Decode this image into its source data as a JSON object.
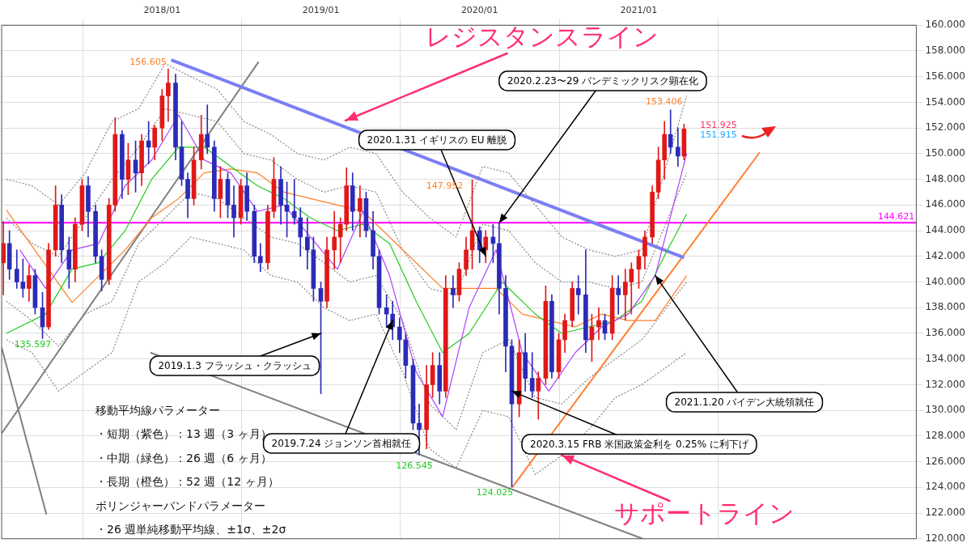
{
  "chart_data": {
    "type": "candlestick",
    "x": [
      "2017-01-01",
      "2017-01-15",
      "2017-02-01",
      "2017-02-15",
      "2017-03-01",
      "2017-03-15",
      "2017-04-01",
      "2017-04-15",
      "2017-05-01",
      "2017-05-15",
      "2017-06-01",
      "2017-06-15",
      "2017-07-01",
      "2017-07-15",
      "2017-08-01",
      "2017-08-15",
      "2017-09-01",
      "2017-09-15",
      "2017-10-01",
      "2017-10-15",
      "2017-11-01",
      "2017-11-15",
      "2017-12-01",
      "2017-12-15",
      "2018-01-01",
      "2018-01-15",
      "2018-02-01",
      "2018-02-15",
      "2018-03-01",
      "2018-03-15",
      "2018-04-01",
      "2018-04-15",
      "2018-05-01",
      "2018-05-15",
      "2018-06-01",
      "2018-06-15",
      "2018-07-01",
      "2018-07-15",
      "2018-08-01",
      "2018-08-15",
      "2018-09-01",
      "2018-09-15",
      "2018-10-01",
      "2018-10-15",
      "2018-11-01",
      "2018-11-15",
      "2018-12-01",
      "2018-12-15",
      "2019-01-01",
      "2019-01-15",
      "2019-02-01",
      "2019-02-15",
      "2019-03-01",
      "2019-03-15",
      "2019-04-01",
      "2019-04-15",
      "2019-05-01",
      "2019-05-15",
      "2019-06-01",
      "2019-06-15",
      "2019-07-01",
      "2019-07-15",
      "2019-08-01",
      "2019-08-15",
      "2019-09-01",
      "2019-09-15",
      "2019-10-01",
      "2019-10-15",
      "2019-11-01",
      "2019-11-15",
      "2019-12-01",
      "2019-12-15",
      "2020-01-01",
      "2020-01-15",
      "2020-02-01",
      "2020-02-15",
      "2020-03-01",
      "2020-03-15",
      "2020-04-01",
      "2020-04-15",
      "2020-05-01",
      "2020-05-15",
      "2020-06-01",
      "2020-06-15",
      "2020-07-01",
      "2020-07-15",
      "2020-08-01",
      "2020-08-15",
      "2020-09-01",
      "2020-09-15",
      "2020-10-01",
      "2020-10-15",
      "2020-11-01",
      "2020-11-15",
      "2020-12-01",
      "2020-12-15",
      "2021-01-01",
      "2021-01-15",
      "2021-02-01",
      "2021-02-15",
      "2021-03-01",
      "2021-03-15",
      "2021-04-01",
      "2021-04-15"
    ],
    "ohlc": [
      [
        141.5,
        144.7,
        139.0,
        143.0
      ],
      [
        143.0,
        144.0,
        140.2,
        141.0
      ],
      [
        141.0,
        142.5,
        139.5,
        140.0
      ],
      [
        140.0,
        141.8,
        138.8,
        139.5
      ],
      [
        139.5,
        141.3,
        138.5,
        140.5
      ],
      [
        140.5,
        141.0,
        137.5,
        138.0
      ],
      [
        138.0,
        139.2,
        135.597,
        136.5
      ],
      [
        136.5,
        143.0,
        136.3,
        142.5
      ],
      [
        142.5,
        147.5,
        142.0,
        146.0
      ],
      [
        146.0,
        146.8,
        141.5,
        142.5
      ],
      [
        142.5,
        143.5,
        139.5,
        141.0
      ],
      [
        141.0,
        145.0,
        140.0,
        144.5
      ],
      [
        144.5,
        148.0,
        144.0,
        147.5
      ],
      [
        147.5,
        148.2,
        143.5,
        145.5
      ],
      [
        145.5,
        146.0,
        141.5,
        142.0
      ],
      [
        142.0,
        142.5,
        139.3,
        140.2
      ],
      [
        140.2,
        146.5,
        139.8,
        146.0
      ],
      [
        146.0,
        152.8,
        145.5,
        151.5
      ],
      [
        151.5,
        151.8,
        146.5,
        148.0
      ],
      [
        148.0,
        150.8,
        146.8,
        149.5
      ],
      [
        149.5,
        151.0,
        147.0,
        148.5
      ],
      [
        148.5,
        151.5,
        147.5,
        151.0
      ],
      [
        151.0,
        152.5,
        149.2,
        150.5
      ],
      [
        150.5,
        152.2,
        149.5,
        152.0
      ],
      [
        152.0,
        155.0,
        151.0,
        154.5
      ],
      [
        154.5,
        156.605,
        152.5,
        155.5
      ],
      [
        155.5,
        156.2,
        149.5,
        150.5
      ],
      [
        150.5,
        152.5,
        147.5,
        148.0
      ],
      [
        148.0,
        148.5,
        145.0,
        146.5
      ],
      [
        146.5,
        150.5,
        146.0,
        149.5
      ],
      [
        149.5,
        153.0,
        148.8,
        151.5
      ],
      [
        151.5,
        153.8,
        150.0,
        150.5
      ],
      [
        150.5,
        151.0,
        145.5,
        146.5
      ],
      [
        146.5,
        149.0,
        145.0,
        148.0
      ],
      [
        148.0,
        148.5,
        145.0,
        146.0
      ],
      [
        146.0,
        147.5,
        143.5,
        145.0
      ],
      [
        145.0,
        148.0,
        144.5,
        147.5
      ],
      [
        147.5,
        148.5,
        144.8,
        145.5
      ],
      [
        145.5,
        146.0,
        141.5,
        142.0
      ],
      [
        142.0,
        143.0,
        140.8,
        141.5
      ],
      [
        141.5,
        146.0,
        141.0,
        145.5
      ],
      [
        145.5,
        149.7,
        145.0,
        148.0
      ],
      [
        148.0,
        149.0,
        144.5,
        146.0
      ],
      [
        146.0,
        147.8,
        143.5,
        145.5
      ],
      [
        145.5,
        148.0,
        144.5,
        145.0
      ],
      [
        145.0,
        145.8,
        142.0,
        143.5
      ],
      [
        143.5,
        145.0,
        141.0,
        142.5
      ],
      [
        142.5,
        143.5,
        138.5,
        139.5
      ],
      [
        139.5,
        140.0,
        131.3,
        138.5
      ],
      [
        138.5,
        143.5,
        138.0,
        142.5
      ],
      [
        142.5,
        145.5,
        141.0,
        143.5
      ],
      [
        143.5,
        145.0,
        141.5,
        144.5
      ],
      [
        144.5,
        148.9,
        144.0,
        147.5
      ],
      [
        147.5,
        148.5,
        144.0,
        145.5
      ],
      [
        145.5,
        147.5,
        143.5,
        146.5
      ],
      [
        146.5,
        147.0,
        143.5,
        144.0
      ],
      [
        144.0,
        145.5,
        141.0,
        142.0
      ],
      [
        142.0,
        142.5,
        137.5,
        138.0
      ],
      [
        138.0,
        139.0,
        136.5,
        137.5
      ],
      [
        137.5,
        138.5,
        135.5,
        136.5
      ],
      [
        136.5,
        137.2,
        134.5,
        135.5
      ],
      [
        135.5,
        136.0,
        132.5,
        133.5
      ],
      [
        133.5,
        134.0,
        128.5,
        129.0
      ],
      [
        129.0,
        130.5,
        126.545,
        128.5
      ],
      [
        128.5,
        133.5,
        127.0,
        132.0
      ],
      [
        132.0,
        134.5,
        131.0,
        133.5
      ],
      [
        133.5,
        134.5,
        130.5,
        131.5
      ],
      [
        131.5,
        140.5,
        131.0,
        139.5
      ],
      [
        139.5,
        140.5,
        138.0,
        139.0
      ],
      [
        139.0,
        141.5,
        138.5,
        141.0
      ],
      [
        141.0,
        143.5,
        140.5,
        142.5
      ],
      [
        142.5,
        147.952,
        141.0,
        144.0
      ],
      [
        144.0,
        144.3,
        141.5,
        142.5
      ],
      [
        142.5,
        144.0,
        141.5,
        143.5
      ],
      [
        143.5,
        144.5,
        141.5,
        143.0
      ],
      [
        143.0,
        144.6,
        137.5,
        139.5
      ],
      [
        139.5,
        140.5,
        133.0,
        135.0
      ],
      [
        135.0,
        135.5,
        124.025,
        130.5
      ],
      [
        130.5,
        135.5,
        129.5,
        134.5
      ],
      [
        134.5,
        136.0,
        131.5,
        132.5
      ],
      [
        132.5,
        134.5,
        131.0,
        131.5
      ],
      [
        131.5,
        133.0,
        129.3,
        132.5
      ],
      [
        132.5,
        139.7,
        132.0,
        138.5
      ],
      [
        138.5,
        139.0,
        132.5,
        133.0
      ],
      [
        133.0,
        136.0,
        132.5,
        135.5
      ],
      [
        135.5,
        137.5,
        134.5,
        137.0
      ],
      [
        137.0,
        140.0,
        136.5,
        139.5
      ],
      [
        139.5,
        140.5,
        137.5,
        139.0
      ],
      [
        139.0,
        142.5,
        134.5,
        135.5
      ],
      [
        135.5,
        137.5,
        133.8,
        136.5
      ],
      [
        136.5,
        138.0,
        135.5,
        137.0
      ],
      [
        137.0,
        137.5,
        135.5,
        136.0
      ],
      [
        136.0,
        140.5,
        135.5,
        139.5
      ],
      [
        139.5,
        140.5,
        137.5,
        139.0
      ],
      [
        139.0,
        141.0,
        137.0,
        140.0
      ],
      [
        140.0,
        141.5,
        137.5,
        141.0
      ],
      [
        141.0,
        142.5,
        139.5,
        142.0
      ],
      [
        142.0,
        144.0,
        141.0,
        143.5
      ],
      [
        143.5,
        147.5,
        143.0,
        147.0
      ],
      [
        147.0,
        150.5,
        146.5,
        149.5
      ],
      [
        149.5,
        152.5,
        148.0,
        151.5
      ],
      [
        151.5,
        153.406,
        150.0,
        150.5
      ],
      [
        150.5,
        152.0,
        149.0,
        149.8
      ],
      [
        149.8,
        152.3,
        149.5,
        151.925
      ]
    ],
    "colors": [
      "#e01818",
      "#2b2bb8",
      "#2b2bb8",
      "#2b2bb8",
      "#e01818",
      "#2b2bb8",
      "#2b2bb8",
      "#e01818",
      "#e01818",
      "#2b2bb8",
      "#2b2bb8",
      "#e01818",
      "#e01818",
      "#2b2bb8",
      "#2b2bb8",
      "#2b2bb8",
      "#e01818",
      "#e01818",
      "#2b2bb8",
      "#e01818",
      "#2b2bb8",
      "#e01818",
      "#2b2bb8",
      "#e01818",
      "#e01818",
      "#e01818",
      "#2b2bb8",
      "#2b2bb8",
      "#2b2bb8",
      "#e01818",
      "#e01818",
      "#2b2bb8",
      "#2b2bb8",
      "#e01818",
      "#2b2bb8",
      "#2b2bb8",
      "#e01818",
      "#2b2bb8",
      "#2b2bb8",
      "#2b2bb8",
      "#e01818",
      "#e01818",
      "#2b2bb8",
      "#2b2bb8",
      "#2b2bb8",
      "#2b2bb8",
      "#2b2bb8",
      "#2b2bb8",
      "#2b2bb8",
      "#e01818",
      "#e01818",
      "#e01818",
      "#e01818",
      "#2b2bb8",
      "#e01818",
      "#2b2bb8",
      "#2b2bb8",
      "#2b2bb8",
      "#2b2bb8",
      "#2b2bb8",
      "#2b2bb8",
      "#2b2bb8",
      "#2b2bb8",
      "#2b2bb8",
      "#e01818",
      "#e01818",
      "#2b2bb8",
      "#e01818",
      "#2b2bb8",
      "#e01818",
      "#e01818",
      "#e01818",
      "#2b2bb8",
      "#e01818",
      "#2b2bb8",
      "#2b2bb8",
      "#2b2bb8",
      "#2b2bb8",
      "#e01818",
      "#2b2bb8",
      "#2b2bb8",
      "#e01818",
      "#e01818",
      "#2b2bb8",
      "#e01818",
      "#e01818",
      "#e01818",
      "#2b2bb8",
      "#2b2bb8",
      "#e01818",
      "#e01818",
      "#2b2bb8",
      "#e01818",
      "#2b2bb8",
      "#e01818",
      "#e01818",
      "#e01818",
      "#e01818",
      "#e01818",
      "#e01818",
      "#e01818",
      "#2b2bb8",
      "#2b2bb8",
      "#e01818"
    ],
    "series": [
      {
        "type": "line",
        "color": "#b040ff",
        "line_style": "solid",
        "x": [
          "2017-02-08",
          "2017-04-08",
          "2017-06-08",
          "2017-08-08",
          "2017-10-08",
          "2017-12-08",
          "2018-02-08",
          "2018-04-08",
          "2018-06-08",
          "2018-08-08",
          "2018-10-08",
          "2018-12-08",
          "2019-02-08",
          "2019-04-08",
          "2019-06-08",
          "2019-08-08",
          "2019-10-08",
          "2019-12-08",
          "2020-02-08",
          "2020-04-08",
          "2020-06-08",
          "2020-08-08",
          "2020-10-08",
          "2020-12-08",
          "2021-02-08",
          "2021-04-21"
        ],
        "values": [
          142.5,
          139.5,
          142.5,
          143.0,
          147.5,
          149.5,
          153.0,
          149.5,
          148.5,
          145.5,
          146.0,
          143.5,
          141.0,
          145.5,
          140.5,
          133.0,
          129.5,
          138.0,
          142.5,
          134.5,
          131.5,
          134.5,
          136.5,
          137.5,
          140.5,
          150.0
        ]
      },
      {
        "type": "line",
        "color": "#22cc22",
        "line_style": "solid",
        "x": [
          "2017-01-08",
          "2017-04-08",
          "2017-06-08",
          "2017-08-08",
          "2017-10-08",
          "2017-12-08",
          "2018-02-08",
          "2018-04-08",
          "2018-06-08",
          "2018-08-08",
          "2018-10-08",
          "2018-12-08",
          "2019-02-08",
          "2019-04-08",
          "2019-06-08",
          "2019-08-08",
          "2019-10-08",
          "2019-12-08",
          "2020-02-22",
          "2020-05-08",
          "2020-07-08",
          "2020-09-08",
          "2020-11-08",
          "2021-01-08",
          "2021-03-08",
          "2021-04-21"
        ],
        "values": [
          136.0,
          137.5,
          141.0,
          141.5,
          144.0,
          148.0,
          150.5,
          150.5,
          149.0,
          147.5,
          146.5,
          145.0,
          144.0,
          144.5,
          143.0,
          138.5,
          134.5,
          136.0,
          140.0,
          137.5,
          136.0,
          136.5,
          137.0,
          138.5,
          142.5,
          145.3
        ]
      },
      {
        "type": "line",
        "color": "#ff7f27",
        "line_style": "solid",
        "x": [
          "2017-01-08",
          "2017-06-08",
          "2017-10-08",
          "2017-12-08",
          "2018-02-08",
          "2018-04-08",
          "2018-06-08",
          "2018-08-08",
          "2018-10-08",
          "2018-12-08",
          "2019-02-08",
          "2019-04-08",
          "2019-06-08",
          "2019-08-08",
          "2019-10-08",
          "2019-12-08",
          "2020-02-08",
          "2020-04-08",
          "2020-06-08",
          "2020-08-08",
          "2020-10-08",
          "2020-12-08",
          "2021-02-08",
          "2021-04-21"
        ],
        "values": [
          145.6,
          138.4,
          142.5,
          145.0,
          146.5,
          148.5,
          148.8,
          148.5,
          147.0,
          146.5,
          146.0,
          145.5,
          143.5,
          141.5,
          139.5,
          139.5,
          139.5,
          137.5,
          137.0,
          136.5,
          137.5,
          137.0,
          137.0,
          140.5
        ]
      },
      {
        "type": "line",
        "color": "#888888",
        "line_style": "dotted",
        "x": [
          "2017-01-08",
          "2017-03-08",
          "2017-05-08",
          "2017-07-08",
          "2017-09-08",
          "2017-11-08",
          "2018-01-08",
          "2018-03-08",
          "2018-05-08",
          "2018-07-08",
          "2018-09-08",
          "2018-11-08",
          "2019-01-08",
          "2019-03-08",
          "2019-05-08",
          "2019-07-08",
          "2019-09-08",
          "2019-11-08",
          "2020-01-08",
          "2020-03-08",
          "2020-05-08",
          "2020-07-08",
          "2020-09-08",
          "2020-11-08",
          "2021-01-08",
          "2021-04-21"
        ],
        "values": [
          148.0,
          147.5,
          146.0,
          148.5,
          152.5,
          153.5,
          157.0,
          156.0,
          155.0,
          152.5,
          151.5,
          150.0,
          149.5,
          150.5,
          150.0,
          147.0,
          145.0,
          143.5,
          149.0,
          148.5,
          146.0,
          143.5,
          142.5,
          142.0,
          142.5,
          154.5
        ]
      },
      {
        "type": "line",
        "color": "#888888",
        "line_style": "dotted",
        "x": [
          "2017-01-08",
          "2017-03-08",
          "2017-05-08",
          "2017-07-08",
          "2017-09-08",
          "2017-11-08",
          "2018-01-08",
          "2018-03-08",
          "2018-05-08",
          "2018-07-08",
          "2018-09-08",
          "2018-11-08",
          "2019-01-08",
          "2019-03-08",
          "2019-05-08",
          "2019-07-08",
          "2019-09-08",
          "2019-11-08",
          "2020-01-08",
          "2020-03-08",
          "2020-05-08",
          "2020-07-08",
          "2020-09-08",
          "2020-11-08",
          "2021-01-08",
          "2021-04-21"
        ],
        "values": [
          145.0,
          143.0,
          142.0,
          145.0,
          148.0,
          150.5,
          153.5,
          153.0,
          152.5,
          150.0,
          149.5,
          148.0,
          147.0,
          147.5,
          147.0,
          142.5,
          139.5,
          139.0,
          144.5,
          144.0,
          141.5,
          140.0,
          140.0,
          139.5,
          140.0,
          148.5
        ]
      },
      {
        "type": "line",
        "color": "#888888",
        "line_style": "dotted",
        "x": [
          "2017-01-08",
          "2017-03-08",
          "2017-05-08",
          "2017-07-08",
          "2017-09-08",
          "2017-11-08",
          "2018-01-08",
          "2018-03-08",
          "2018-05-08",
          "2018-07-08",
          "2018-09-08",
          "2018-11-08",
          "2019-01-08",
          "2019-03-08",
          "2019-05-08",
          "2019-07-08",
          "2019-09-08",
          "2019-11-08",
          "2020-01-08",
          "2020-03-08",
          "2020-05-08",
          "2020-07-08",
          "2020-09-08",
          "2020-11-08",
          "2021-01-08",
          "2021-04-21"
        ],
        "values": [
          138.5,
          137.0,
          135.0,
          137.5,
          138.5,
          143.0,
          145.0,
          147.0,
          146.5,
          145.0,
          143.5,
          143.0,
          141.5,
          140.0,
          140.5,
          137.0,
          130.5,
          128.5,
          134.5,
          135.5,
          131.0,
          130.5,
          132.5,
          134.0,
          135.5,
          140.0
        ]
      },
      {
        "type": "line",
        "color": "#888888",
        "line_style": "dotted",
        "x": [
          "2017-01-08",
          "2017-03-08",
          "2017-05-08",
          "2017-07-08",
          "2017-09-08",
          "2017-11-08",
          "2018-01-08",
          "2018-03-08",
          "2018-05-08",
          "2018-07-08",
          "2018-09-08",
          "2018-11-08",
          "2019-01-08",
          "2019-03-08",
          "2019-05-08",
          "2019-07-08",
          "2019-09-08",
          "2019-11-08",
          "2020-01-08",
          "2020-03-08",
          "2020-05-08",
          "2020-07-08",
          "2020-09-08",
          "2020-11-08",
          "2021-01-08",
          "2021-04-21"
        ],
        "values": [
          135.5,
          134.5,
          131.5,
          133.0,
          134.5,
          140.0,
          141.5,
          143.5,
          143.0,
          142.5,
          140.5,
          140.0,
          138.0,
          137.0,
          137.5,
          133.0,
          127.0,
          125.5,
          130.0,
          129.5,
          125.0,
          126.5,
          128.5,
          131.0,
          132.0,
          134.5
        ]
      },
      {
        "type": "line",
        "color": "#7b7ff5",
        "line_style": "solid",
        "x": [
          "2018-01-22",
          "2021-04-15"
        ],
        "values": [
          157.3,
          141.9
        ]
      },
      {
        "type": "line",
        "color": "#ff8033",
        "line_style": "solid",
        "x": [
          "2020-03-16",
          "2021-10-06"
        ],
        "values": [
          124.0,
          150.1
        ]
      },
      {
        "type": "line",
        "color": "#808080",
        "line_style": "solid",
        "x": [
          "2016-12-28",
          "2018-08-11"
        ],
        "values": [
          128.2,
          157.15
        ]
      },
      {
        "type": "line",
        "color": "#808080",
        "line_style": "solid",
        "x": [
          "2016-12-28",
          "2017-04-10"
        ],
        "values": [
          134.9,
          121.9
        ]
      },
      {
        "type": "line",
        "color": "#808080",
        "line_style": "solid",
        "x": [
          "2017-12-05",
          "2021-01-10"
        ],
        "values": [
          134.5,
          120.0
        ]
      }
    ],
    "marker": "none",
    "grid": true,
    "legend": false,
    "xlim": [
      "2016-12-28",
      "2022-10-01"
    ],
    "xticks": [
      {
        "value": "2018-01-01",
        "label": "2018/01"
      },
      {
        "value": "2019-01-01",
        "label": "2019/01"
      },
      {
        "value": "2020-01-01",
        "label": "2020/01"
      },
      {
        "value": "2021-01-01",
        "label": "2021/01"
      }
    ],
    "ylim": [
      120,
      160
    ],
    "yticks": [
      {
        "value": 120,
        "label": "120.000"
      },
      {
        "value": 122,
        "label": "122.000"
      },
      {
        "value": 124,
        "label": "124.000"
      },
      {
        "value": 126,
        "label": "126.000"
      },
      {
        "value": 128,
        "label": "128.000"
      },
      {
        "value": 130,
        "label": "130.000"
      },
      {
        "value": 132,
        "label": "132.000"
      },
      {
        "value": 134,
        "label": "134.000"
      },
      {
        "value": 136,
        "label": "136.000"
      },
      {
        "value": 138,
        "label": "138.000"
      },
      {
        "value": 140,
        "label": "140.000"
      },
      {
        "value": 142,
        "label": "142.000"
      },
      {
        "value": 144,
        "label": "144.000"
      },
      {
        "value": 146,
        "label": "146.000"
      },
      {
        "value": 148,
        "label": "148.000"
      },
      {
        "value": 150,
        "label": "150.000"
      },
      {
        "value": 152,
        "label": "152.000"
      },
      {
        "value": 154,
        "label": "154.000"
      },
      {
        "value": 156,
        "label": "156.000"
      },
      {
        "value": 158,
        "label": "158.000"
      },
      {
        "value": 160,
        "label": "160.000"
      }
    ],
    "ref_lines": [
      {
        "axis": "y",
        "value": 144.621,
        "label": "144.621",
        "color": "#ff00ff"
      }
    ],
    "annotations": [
      "レジスタンスライン",
      {
        "text": "サポートライン",
        "x": "2020-07-08",
        "y": 126.5
      },
      {
        "text": "2019.1.3 フラッシュ・クラッシュ",
        "x": "2019-01-01",
        "y": 136.0
      },
      {
        "text": "2019.7.24 ジョンソン首相就任",
        "x": "2019-06-15",
        "y": 137.0
      },
      {
        "text": "2020.1.31 イギリスの EU 離脱",
        "x": "2020-01-15",
        "y": 142.0
      },
      {
        "text": "2020.2.23〜29 パンデミックリスク顕在化",
        "x": "2020-02-15",
        "y": 144.6
      },
      {
        "text": "2020.3.15 FRB 米国政策金利を 0.25% に利下げ",
        "x": "2020-03-15",
        "y": 131.5
      },
      {
        "text": "2021.1.20 バイデン大統領就任",
        "x": "2021-02-08",
        "y": 140.5
      },
      {
        "text": "156.605",
        "x": "2018-01-15",
        "y": 156.605
      },
      {
        "text": "135.597",
        "x": "2017-04-01",
        "y": 135.597
      },
      {
        "text": "147.952",
        "x": "2019-12-15",
        "y": 147.952
      },
      {
        "text": "126.545",
        "x": "2019-08-15",
        "y": 126.545
      },
      {
        "text": "124.025",
        "x": "2020-03-15",
        "y": 124.025
      },
      {
        "text": "153.406",
        "x": "2021-03-15",
        "y": 153.406
      },
      {
        "text": "151.925",
        "x": "2021-04-15",
        "y": 151.925
      },
      {
        "text": "151.915",
        "x": "2021-04-15",
        "y": 151.915
      },
      "移動平均線パラメーター",
      "・短期（紫色）：13 週（3 ヶ月）",
      "・中期（緑色）：26 週（6 ヶ月）",
      "・長期（橙色）：52 週（12 ヶ月）",
      "ボリンジャーバンドパラメーター",
      "・26 週単純移動平均線、±1σ、±2σ"
    ]
  }
}
